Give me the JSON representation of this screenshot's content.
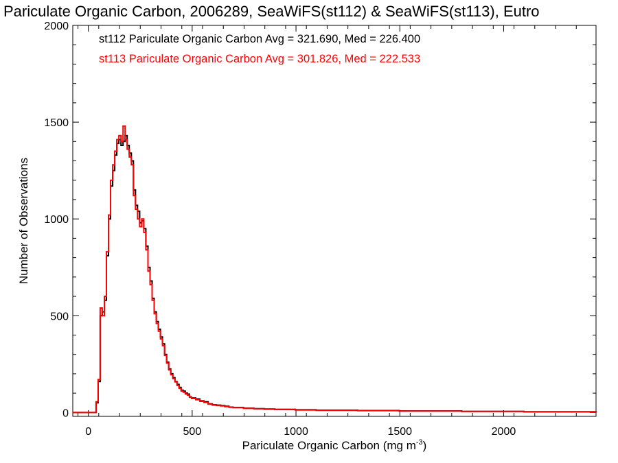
{
  "chart_data": {
    "type": "line",
    "title": "Pariculate Organic Carbon, 2006289, SeaWiFS(st112) & SeaWiFS(st113), Eutro",
    "xlabel": "Pariculate Organic Carbon (mg m",
    "xlabel_sup": "-3",
    "xlabel_close": ")",
    "ylabel": "Number of Observations",
    "xlim": [
      -75,
      2445
    ],
    "ylim": [
      -20,
      2000
    ],
    "xticks": [
      0,
      500,
      1000,
      1500,
      2000
    ],
    "yticks": [
      0,
      500,
      1000,
      1500,
      2000
    ],
    "tick_labels_x": [
      "0",
      "500",
      "1000",
      "1500",
      "2000"
    ],
    "tick_labels_y": [
      "0",
      "500",
      "1000",
      "1500",
      "2000"
    ],
    "grid": false,
    "legend_position": "top-left",
    "x": [
      -75,
      0,
      25,
      37,
      47,
      57,
      67,
      77,
      87,
      97,
      107,
      117,
      127,
      137,
      147,
      157,
      167,
      177,
      187,
      197,
      207,
      217,
      227,
      237,
      247,
      257,
      267,
      277,
      287,
      297,
      307,
      317,
      327,
      337,
      347,
      357,
      367,
      377,
      387,
      397,
      407,
      417,
      427,
      437,
      447,
      457,
      467,
      477,
      487,
      497,
      517,
      537,
      557,
      577,
      597,
      617,
      637,
      657,
      677,
      697,
      747,
      797,
      847,
      897,
      997,
      1097,
      1297,
      1497,
      1797,
      2097,
      2445
    ],
    "series": [
      {
        "name": "st112",
        "color": "#000000",
        "values": [
          0,
          0,
          0,
          50,
          160,
          500,
          520,
          580,
          810,
          1000,
          1170,
          1250,
          1330,
          1390,
          1410,
          1380,
          1400,
          1430,
          1380,
          1340,
          1300,
          1150,
          1070,
          1040,
          980,
          990,
          950,
          860,
          750,
          680,
          590,
          520,
          470,
          430,
          390,
          355,
          300,
          260,
          225,
          200,
          180,
          160,
          145,
          130,
          115,
          110,
          100,
          95,
          80,
          75,
          70,
          60,
          55,
          45,
          40,
          38,
          36,
          32,
          28,
          26,
          22,
          20,
          18,
          16,
          14,
          12,
          10,
          8,
          6,
          4,
          3
        ]
      },
      {
        "name": "st113",
        "color": "#ff0000",
        "values": [
          0,
          0,
          0,
          55,
          170,
          540,
          500,
          600,
          830,
          1020,
          1200,
          1280,
          1350,
          1410,
          1430,
          1400,
          1480,
          1410,
          1360,
          1320,
          1280,
          1120,
          1050,
          1000,
          960,
          1000,
          930,
          840,
          730,
          660,
          580,
          510,
          460,
          420,
          380,
          345,
          295,
          255,
          220,
          195,
          175,
          158,
          140,
          125,
          110,
          105,
          95,
          90,
          78,
          72,
          66,
          58,
          52,
          43,
          38,
          36,
          34,
          30,
          27,
          25,
          21,
          19,
          17,
          15,
          13,
          11,
          9,
          7,
          5,
          3,
          2
        ]
      }
    ],
    "legend": [
      {
        "text": "st112 Pariculate Organic Carbon Avg = 321.690, Med = 226.400",
        "color": "#000000"
      },
      {
        "text": "st113 Pariculate Organic Carbon Avg = 301.826, Med = 222.533",
        "color": "#ff0000"
      }
    ]
  }
}
